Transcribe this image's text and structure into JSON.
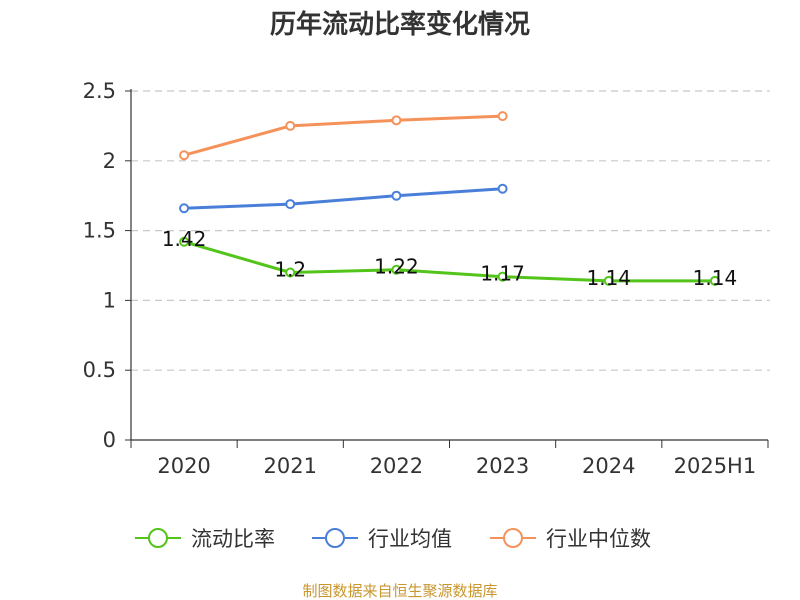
{
  "chart_data": {
    "type": "line",
    "title": "历年流动比率变化情况",
    "categories": [
      "2020",
      "2021",
      "2022",
      "2023",
      "2024",
      "2025H1"
    ],
    "ylim": [
      0,
      2.5
    ],
    "yticks": [
      "0",
      "0.5",
      "1",
      "1.5",
      "2",
      "2.5"
    ],
    "grid": true,
    "legend_position": "bottom",
    "series": [
      {
        "name": "流动比率",
        "color": "#52c41a",
        "values": [
          1.42,
          1.2,
          1.22,
          1.17,
          1.14,
          1.14
        ],
        "labels": [
          "1.42",
          "1.2",
          "1.22",
          "1.17",
          "1.14",
          "1.14"
        ]
      },
      {
        "name": "行业均值",
        "color": "#4a7fd9",
        "values": [
          1.66,
          1.69,
          1.75,
          1.8,
          null,
          null
        ]
      },
      {
        "name": "行业中位数",
        "color": "#f5925a",
        "values": [
          2.04,
          2.25,
          2.29,
          2.32,
          null,
          null
        ]
      }
    ]
  },
  "source": "制图数据来自恒生聚源数据库"
}
